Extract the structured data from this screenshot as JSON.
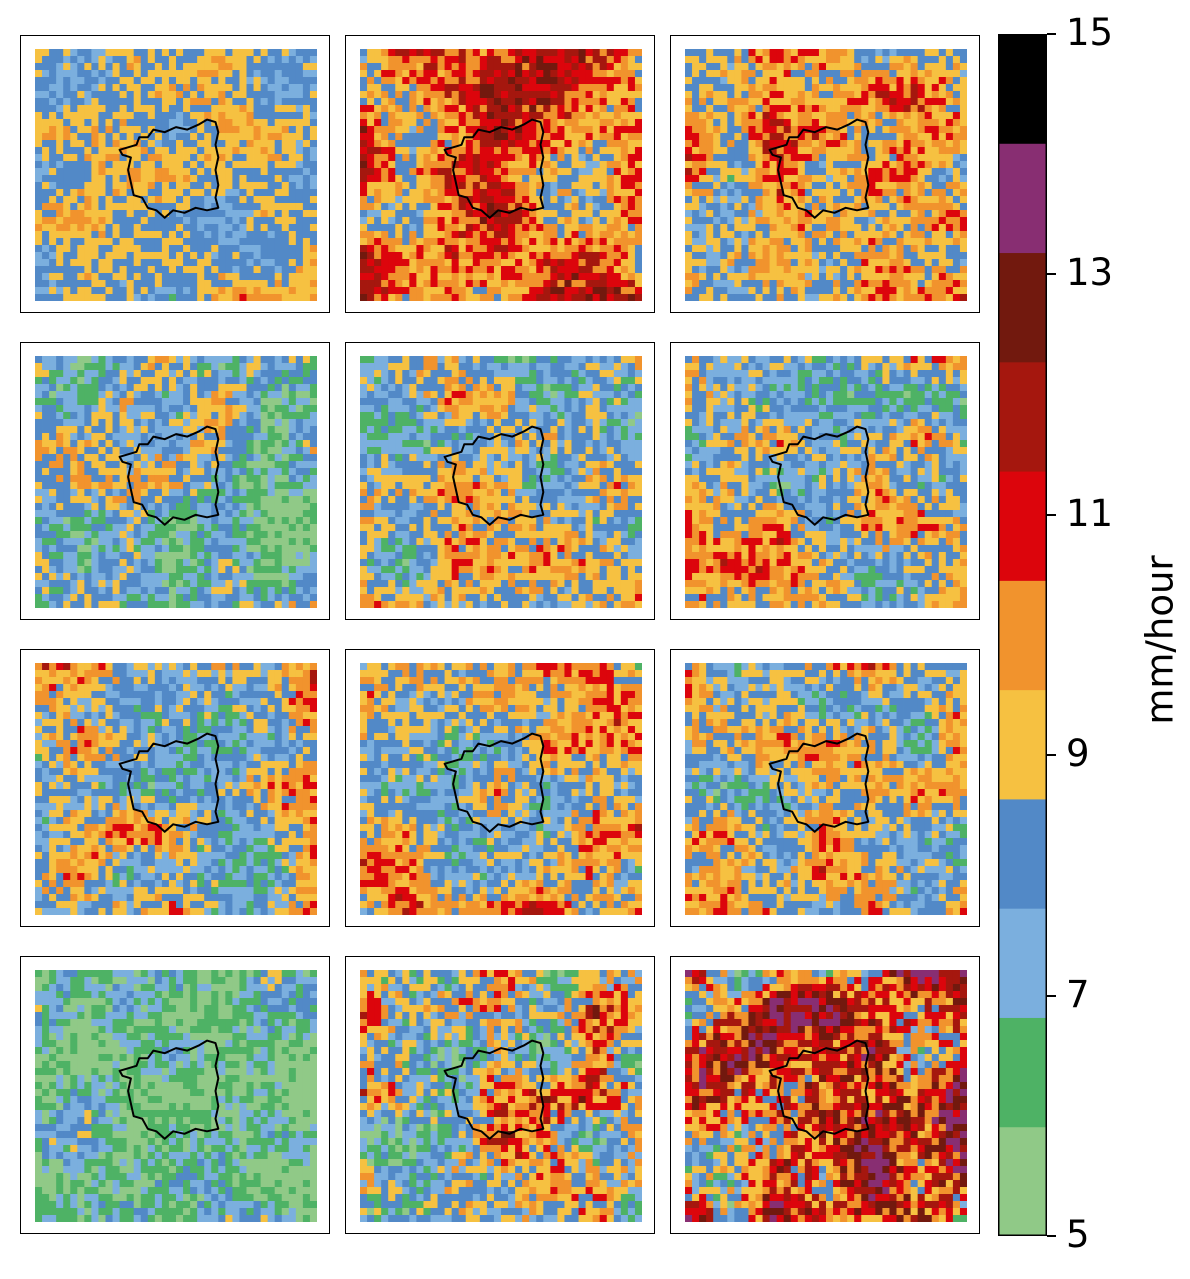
{
  "colorbar": {
    "unit_label": "mm/hour",
    "tick_labels": [
      "5",
      "7",
      "9",
      "11",
      "13",
      "15"
    ],
    "ticks": [
      5,
      7,
      9,
      11,
      13,
      15
    ],
    "bounds": [
      5,
      6,
      7,
      8,
      9,
      10,
      11,
      12,
      13,
      14,
      15
    ],
    "colors": [
      "#90c987",
      "#4eb265",
      "#7bafde",
      "#5289c7",
      "#f6c141",
      "#f1932d",
      "#dc050c",
      "#a5170e",
      "#72190e",
      "#882e72",
      "#000000"
    ]
  },
  "chart_data": {
    "type": "heatmap",
    "layout": {
      "rows": 4,
      "cols": 3
    },
    "value_unit": "mm/hour",
    "value_range": [
      5,
      15
    ],
    "panels": [
      {
        "row": 1,
        "col": 1,
        "dominant_range": [
          8,
          10
        ],
        "approx_mean": 8.9
      },
      {
        "row": 1,
        "col": 2,
        "dominant_range": [
          10,
          13
        ],
        "approx_mean": 10.6
      },
      {
        "row": 1,
        "col": 3,
        "dominant_range": [
          8,
          11
        ],
        "approx_mean": 9.6
      },
      {
        "row": 2,
        "col": 1,
        "dominant_range": [
          6,
          9
        ],
        "approx_mean": 7.6
      },
      {
        "row": 2,
        "col": 2,
        "dominant_range": [
          7,
          10
        ],
        "approx_mean": 8.5
      },
      {
        "row": 2,
        "col": 3,
        "dominant_range": [
          8,
          11
        ],
        "approx_mean": 8.9
      },
      {
        "row": 3,
        "col": 1,
        "dominant_range": [
          8,
          11
        ],
        "approx_mean": 9.0
      },
      {
        "row": 3,
        "col": 2,
        "dominant_range": [
          8,
          11
        ],
        "approx_mean": 9.4
      },
      {
        "row": 3,
        "col": 3,
        "dominant_range": [
          8,
          11
        ],
        "approx_mean": 9.1
      },
      {
        "row": 4,
        "col": 1,
        "dominant_range": [
          5,
          8
        ],
        "approx_mean": 6.7
      },
      {
        "row": 4,
        "col": 2,
        "dominant_range": [
          7,
          11
        ],
        "approx_mean": 8.6
      },
      {
        "row": 4,
        "col": 3,
        "dominant_range": [
          9,
          14
        ],
        "approx_mean": 11.0
      }
    ]
  }
}
